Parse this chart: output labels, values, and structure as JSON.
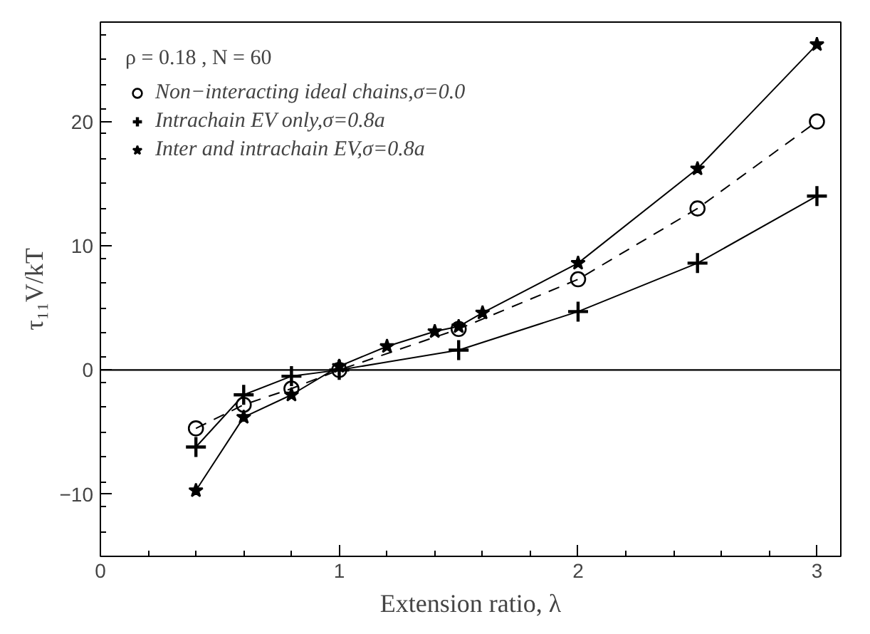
{
  "chart_data": {
    "type": "line",
    "xlabel": "Extension ratio, λ",
    "ylabel": "τ₁₁V/kT",
    "legend_title": "ρ = 0.18 , N = 60",
    "xlim": [
      0,
      3.1
    ],
    "ylim": [
      -15,
      28
    ],
    "xticks": [
      0,
      1,
      2,
      3
    ],
    "yticks": [
      -10,
      0,
      10,
      20
    ],
    "grid": false,
    "legend": "top left",
    "ref_lines": [
      {
        "axis": "y",
        "value": 0,
        "color": "#000000"
      }
    ],
    "series": [
      {
        "name": "Non−interacting ideal chains,σ=0.0",
        "color": "#000000",
        "marker": "circle",
        "line_style": "dashed",
        "x": [
          0.4,
          0.6,
          0.8,
          1.0,
          1.5,
          2.0,
          2.5,
          3.0
        ],
        "values": [
          -4.7,
          -2.8,
          -1.5,
          0,
          3.3,
          7.3,
          13,
          20
        ]
      },
      {
        "name": "Intrachain EV only,σ=0.8a",
        "color": "#000000",
        "marker": "cross",
        "line_style": "solid",
        "x": [
          0.4,
          0.6,
          0.8,
          1.0,
          1.5,
          2.0,
          2.5,
          3.0
        ],
        "values": [
          -6.2,
          -2.0,
          -0.5,
          0,
          1.6,
          4.7,
          8.6,
          14
        ]
      },
      {
        "name": "Inter and intrachain EV,σ=0.8a",
        "color": "#000000",
        "marker": "star",
        "line_style": "solid",
        "x": [
          0.4,
          0.6,
          0.8,
          1.0,
          1.2,
          1.4,
          1.5,
          1.6,
          2.0,
          2.5,
          3.0
        ],
        "values": [
          -9.7,
          -3.8,
          -2.0,
          0.3,
          1.9,
          3.1,
          3.5,
          4.6,
          8.6,
          16.2,
          26.2
        ]
      }
    ]
  }
}
